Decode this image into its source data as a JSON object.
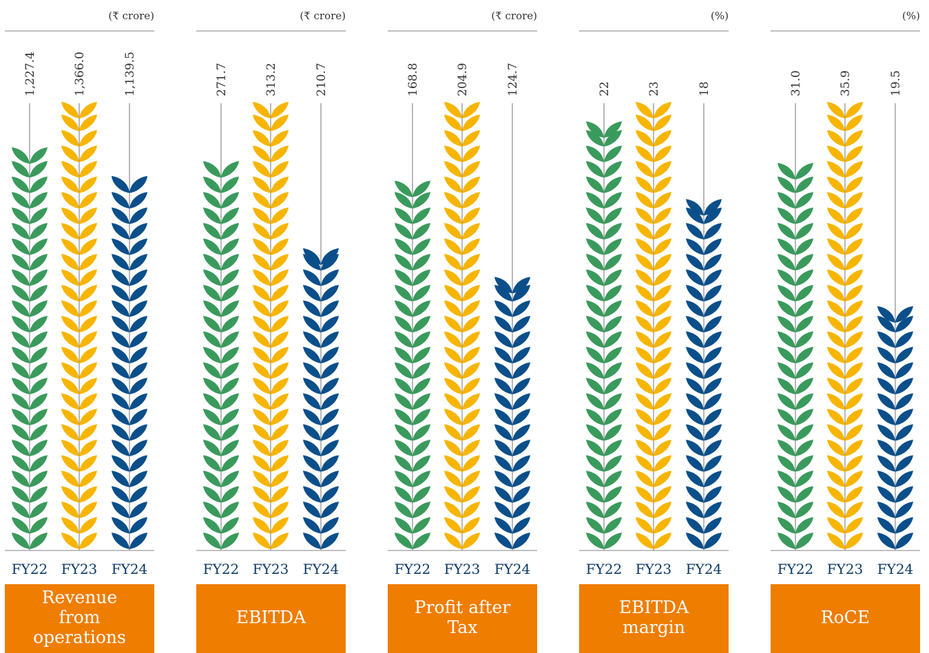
{
  "colors": {
    "fy22": "#3a9a5c",
    "fy23": "#f7b500",
    "fy24": "#0b4f8a",
    "label_bg": "#ef7d00",
    "label_text": "#ffffff",
    "category_text": "#0b3a66",
    "stem": "#8a8a8a",
    "text": "#333333"
  },
  "icons": {
    "bar_mark": "wheat-stalk-icon"
  },
  "chart_data": [
    {
      "type": "bar",
      "title": "Revenue from operations",
      "title_lines": [
        "Revenue",
        "from",
        "operations"
      ],
      "unit": "(₹ crore)",
      "categories": [
        "FY22",
        "FY23",
        "FY24"
      ],
      "values": [
        1227.4,
        1366.0,
        1139.5
      ],
      "value_labels": [
        "1,227.4",
        "1,366.0",
        "1,139.5"
      ]
    },
    {
      "type": "bar",
      "title": "EBITDA",
      "title_lines": [
        "EBITDA"
      ],
      "unit": "(₹ crore)",
      "categories": [
        "FY22",
        "FY23",
        "FY24"
      ],
      "values": [
        271.7,
        313.2,
        210.7
      ],
      "value_labels": [
        "271.7",
        "313.2",
        "210.7"
      ]
    },
    {
      "type": "bar",
      "title": "Profit after Tax",
      "title_lines": [
        "Profit after",
        "Tax"
      ],
      "unit": "(₹ crore)",
      "categories": [
        "FY22",
        "FY23",
        "FY24"
      ],
      "values": [
        168.8,
        204.9,
        124.7
      ],
      "value_labels": [
        "168.8",
        "204.9",
        "124.7"
      ]
    },
    {
      "type": "bar",
      "title": "EBITDA margin",
      "title_lines": [
        "EBITDA",
        "margin"
      ],
      "unit": "(%)",
      "categories": [
        "FY22",
        "FY23",
        "FY24"
      ],
      "values": [
        22,
        23,
        18
      ],
      "value_labels": [
        "22",
        "23",
        "18"
      ]
    },
    {
      "type": "bar",
      "title": "RoCE",
      "title_lines": [
        "RoCE"
      ],
      "unit": "(%)",
      "categories": [
        "FY22",
        "FY23",
        "FY24"
      ],
      "values": [
        31.0,
        35.9,
        19.5
      ],
      "value_labels": [
        "31.0",
        "35.9",
        "19.5"
      ]
    }
  ]
}
